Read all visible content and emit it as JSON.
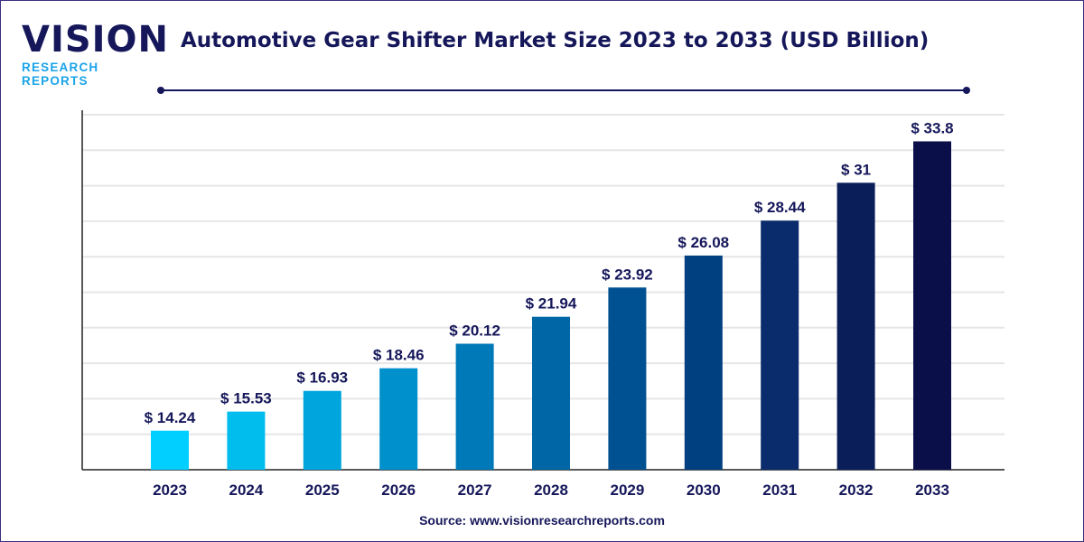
{
  "logo": {
    "main": "VISION",
    "sub": "RESEARCH REPORTS"
  },
  "source": "Source: www.visionresearchreports.com",
  "chart_data": {
    "type": "bar",
    "title": "Automotive Gear Shifter Market Size 2023 to 2033 (USD Billion)",
    "categories": [
      "2023",
      "2024",
      "2025",
      "2026",
      "2027",
      "2028",
      "2029",
      "2030",
      "2031",
      "2032",
      "2033"
    ],
    "values": [
      14.24,
      15.53,
      16.93,
      18.46,
      20.12,
      21.94,
      23.92,
      26.08,
      28.44,
      31,
      33.8
    ],
    "data_labels": [
      "$ 14.24",
      "$ 15.53",
      "$ 16.93",
      "$ 18.46",
      "$ 20.12",
      "$ 21.94",
      "$ 23.92",
      "$ 26.08",
      "$ 28.44",
      "$ 31",
      "$ 33.8"
    ],
    "xlabel": "",
    "ylabel": "",
    "ylim": [
      11.6,
      35.6
    ],
    "grid": true,
    "y_tick_labels_shown": false,
    "colors": [
      "#00cfff",
      "#00bdee",
      "#00a5dd",
      "#0090cc",
      "#0079b8",
      "#0066a6",
      "#005192",
      "#003f80",
      "#0a2c6c",
      "#0a1e5a",
      "#0a0f4a"
    ],
    "text_color": "#15175a"
  }
}
